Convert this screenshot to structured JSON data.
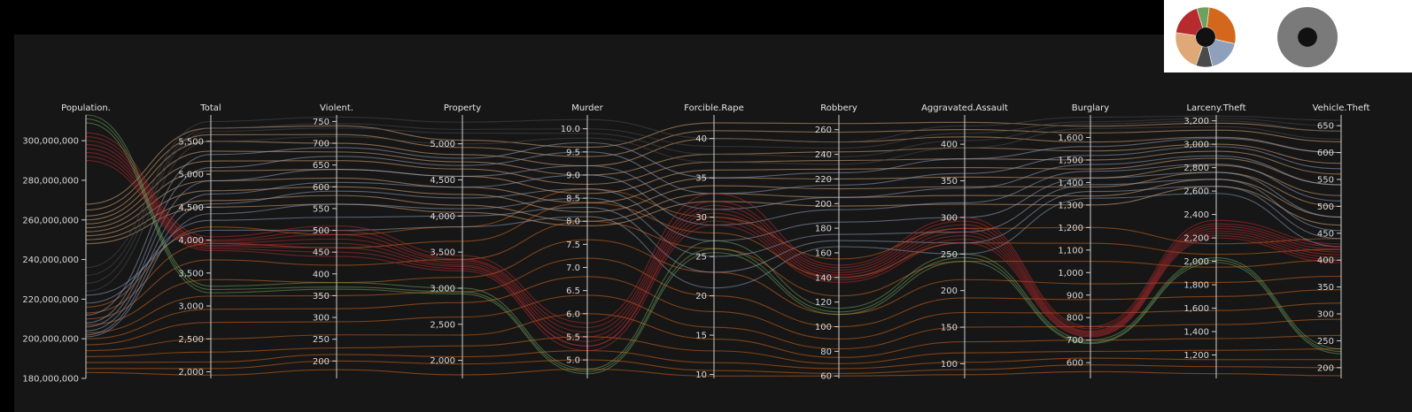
{
  "chart_data": {
    "type": "parallel-coordinates",
    "title": "",
    "axes": [
      {
        "name": "Population.",
        "min": 180000000,
        "max": 313000000,
        "ticks": [
          180000000,
          200000000,
          220000000,
          240000000,
          260000000,
          280000000,
          300000000
        ],
        "tick_labels": [
          "180,000,000",
          "200,000,000",
          "220,000,000",
          "240,000,000",
          "260,000,000",
          "280,000,000",
          "300,000,000"
        ]
      },
      {
        "name": "Total",
        "min": 1900,
        "max": 5900,
        "ticks": [
          2000,
          2500,
          3000,
          3500,
          4000,
          4500,
          5000,
          5500
        ],
        "tick_labels": [
          "2,000",
          "2,500",
          "3,000",
          "3,500",
          "4,000",
          "4,500",
          "5,000",
          "5,500"
        ]
      },
      {
        "name": "Violent.",
        "min": 160,
        "max": 765,
        "ticks": [
          200,
          250,
          300,
          350,
          400,
          450,
          500,
          550,
          600,
          650,
          700,
          750
        ],
        "tick_labels": [
          "200",
          "250",
          "300",
          "350",
          "400",
          "450",
          "500",
          "550",
          "600",
          "650",
          "700",
          "750"
        ]
      },
      {
        "name": "Property",
        "min": 1750,
        "max": 5400,
        "ticks": [
          2000,
          2500,
          3000,
          3500,
          4000,
          4500,
          5000
        ],
        "tick_labels": [
          "2,000",
          "2,500",
          "3,000",
          "3,500",
          "4,000",
          "4,500",
          "5,000"
        ]
      },
      {
        "name": "Murder",
        "min": 4.6,
        "max": 10.3,
        "ticks": [
          5.0,
          5.5,
          6.0,
          6.5,
          7.0,
          7.5,
          8.0,
          8.5,
          9.0,
          9.5,
          10.0
        ],
        "tick_labels": [
          "5.0",
          "5.5",
          "6.0",
          "6.5",
          "7.0",
          "7.5",
          "8.0",
          "8.5",
          "9.0",
          "9.5",
          "10.0"
        ]
      },
      {
        "name": "Forcible.Rape",
        "min": 9.5,
        "max": 43,
        "ticks": [
          10,
          15,
          20,
          25,
          30,
          35,
          40
        ],
        "tick_labels": [
          "10",
          "15",
          "20",
          "25",
          "30",
          "35",
          "40"
        ]
      },
      {
        "name": "Robbery",
        "min": 58,
        "max": 272,
        "ticks": [
          60,
          80,
          100,
          120,
          140,
          160,
          180,
          200,
          220,
          240,
          260
        ],
        "tick_labels": [
          "60",
          "80",
          "100",
          "120",
          "140",
          "160",
          "180",
          "200",
          "220",
          "240",
          "260"
        ]
      },
      {
        "name": "Aggravated.Assault",
        "min": 80,
        "max": 440,
        "ticks": [
          100,
          150,
          200,
          250,
          300,
          350,
          400
        ],
        "tick_labels": [
          "100",
          "150",
          "200",
          "250",
          "300",
          "350",
          "400"
        ]
      },
      {
        "name": "Burglary",
        "min": 530,
        "max": 1700,
        "ticks": [
          600,
          700,
          800,
          900,
          1000,
          1100,
          1200,
          1300,
          1400,
          1500,
          1600
        ],
        "tick_labels": [
          "600",
          "700",
          "800",
          "900",
          "1,000",
          "1,100",
          "1,200",
          "1,300",
          "1,400",
          "1,500",
          "1,600"
        ]
      },
      {
        "name": "Larceny.Theft",
        "min": 1000,
        "max": 3250,
        "ticks": [
          1200,
          1400,
          1600,
          1800,
          2000,
          2200,
          2400,
          2600,
          2800,
          3000,
          3200
        ],
        "tick_labels": [
          "1,200",
          "1,400",
          "1,600",
          "1,800",
          "2,000",
          "2,200",
          "2,400",
          "2,600",
          "2,800",
          "3,000",
          "3,200"
        ]
      },
      {
        "name": "Vehicle.Theft",
        "min": 180,
        "max": 670,
        "ticks": [
          200,
          250,
          300,
          350,
          400,
          450,
          500,
          550,
          600,
          650
        ],
        "tick_labels": [
          "200",
          "250",
          "300",
          "350",
          "400",
          "450",
          "500",
          "550",
          "600",
          "650"
        ]
      }
    ],
    "groups": [
      {
        "color": "#d3681c"
      },
      {
        "color": "#dfa877"
      },
      {
        "color": "#4a4a4a"
      },
      {
        "color": "#8fa0bc"
      },
      {
        "color": "#b72b2f"
      },
      {
        "color": "#6fa05e"
      }
    ],
    "lines": [
      {
        "g": 0,
        "v": [
          183000000,
          1950,
          180,
          1800,
          4.8,
          9.8,
          60,
          85,
          560,
          1040,
          185
        ]
      },
      {
        "g": 0,
        "v": [
          185000000,
          2050,
          200,
          1950,
          5.0,
          10.5,
          62,
          92,
          590,
          1100,
          200
        ]
      },
      {
        "g": 0,
        "v": [
          188000000,
          2150,
          215,
          2050,
          5.2,
          11.5,
          66,
          102,
          620,
          1160,
          215
        ]
      },
      {
        "g": 0,
        "v": [
          191000000,
          2300,
          230,
          2200,
          5.5,
          13,
          70,
          115,
          650,
          1240,
          235
        ]
      },
      {
        "g": 0,
        "v": [
          194000000,
          2500,
          260,
          2350,
          6.0,
          14.5,
          75,
          130,
          700,
          1340,
          260
        ]
      },
      {
        "g": 0,
        "v": [
          197000000,
          2750,
          290,
          2600,
          6.4,
          16,
          82,
          150,
          760,
          1460,
          290
        ]
      },
      {
        "g": 0,
        "v": [
          200000000,
          2950,
          320,
          2800,
          6.8,
          18,
          90,
          170,
          820,
          1580,
          320
        ]
      },
      {
        "g": 0,
        "v": [
          203000000,
          3150,
          350,
          2950,
          7.2,
          20,
          100,
          190,
          880,
          1700,
          345
        ]
      },
      {
        "g": 0,
        "v": [
          207000000,
          3400,
          380,
          3150,
          7.6,
          23,
          110,
          215,
          950,
          1820,
          370
        ]
      },
      {
        "g": 0,
        "v": [
          210000000,
          3700,
          420,
          3400,
          8.0,
          26,
          125,
          240,
          1050,
          1950,
          400
        ]
      },
      {
        "g": 0,
        "v": [
          213000000,
          3950,
          460,
          3650,
          8.4,
          28,
          140,
          265,
          1130,
          2060,
          420
        ]
      },
      {
        "g": 0,
        "v": [
          216000000,
          4200,
          490,
          3850,
          8.7,
          30,
          155,
          285,
          1200,
          2150,
          440
        ]
      },
      {
        "g": 1,
        "v": [
          268000000,
          5700,
          740,
          5050,
          9.6,
          42,
          265,
          430,
          1650,
          3180,
          640
        ]
      },
      {
        "g": 1,
        "v": [
          265000000,
          5600,
          720,
          4950,
          9.4,
          41,
          258,
          420,
          1620,
          3120,
          620
        ]
      },
      {
        "g": 1,
        "v": [
          262000000,
          5500,
          700,
          4850,
          9.2,
          40,
          250,
          410,
          1580,
          3060,
          600
        ]
      },
      {
        "g": 1,
        "v": [
          260000000,
          5350,
          680,
          4750,
          9.0,
          38,
          242,
          395,
          1540,
          3000,
          580
        ]
      },
      {
        "g": 1,
        "v": [
          258000000,
          5200,
          660,
          4650,
          8.8,
          37,
          235,
          380,
          1500,
          2940,
          560
        ]
      },
      {
        "g": 1,
        "v": [
          256000000,
          5050,
          640,
          4550,
          8.6,
          36,
          228,
          368,
          1460,
          2880,
          540
        ]
      },
      {
        "g": 1,
        "v": [
          254000000,
          4900,
          620,
          4400,
          8.4,
          35,
          220,
          355,
          1420,
          2820,
          520
        ]
      },
      {
        "g": 1,
        "v": [
          252000000,
          4750,
          600,
          4300,
          8.2,
          34,
          212,
          342,
          1380,
          2760,
          500
        ]
      },
      {
        "g": 1,
        "v": [
          250000000,
          4600,
          580,
          4150,
          8.0,
          33,
          205,
          330,
          1340,
          2700,
          480
        ]
      },
      {
        "g": 1,
        "v": [
          248000000,
          4500,
          560,
          4050,
          7.9,
          32,
          198,
          318,
          1300,
          2640,
          465
        ]
      },
      {
        "g": 2,
        "v": [
          236000000,
          5800,
          760,
          5300,
          10.2,
          40,
          250,
          425,
          1690,
          3240,
          660
        ]
      },
      {
        "g": 2,
        "v": [
          232000000,
          5700,
          745,
          5200,
          10.0,
          39,
          245,
          415,
          1670,
          3220,
          650
        ]
      },
      {
        "g": 2,
        "v": [
          228000000,
          5650,
          735,
          5150,
          9.9,
          38,
          238,
          405,
          1660,
          3200,
          640
        ]
      },
      {
        "g": 2,
        "v": [
          224000000,
          5500,
          715,
          5000,
          9.8,
          37,
          232,
          395,
          1640,
          3150,
          625
        ]
      },
      {
        "g": 3,
        "v": [
          212000000,
          5300,
          690,
          4800,
          9.7,
          35,
          225,
          380,
          1560,
          3050,
          600
        ]
      },
      {
        "g": 3,
        "v": [
          208000000,
          5100,
          670,
          4700,
          9.5,
          33,
          215,
          360,
          1520,
          2980,
          570
        ]
      },
      {
        "g": 3,
        "v": [
          206000000,
          4900,
          640,
          4550,
          9.2,
          31,
          205,
          340,
          1480,
          2900,
          540
        ]
      },
      {
        "g": 3,
        "v": [
          204000000,
          4700,
          610,
          4400,
          9.0,
          29,
          195,
          320,
          1450,
          2830,
          510
        ]
      },
      {
        "g": 3,
        "v": [
          202000000,
          4550,
          590,
          4250,
          8.7,
          27,
          185,
          300,
          1420,
          2760,
          480
        ]
      },
      {
        "g": 3,
        "v": [
          201000000,
          4400,
          560,
          4100,
          8.5,
          25,
          175,
          280,
          1390,
          2700,
          455
        ]
      },
      {
        "g": 3,
        "v": [
          218000000,
          4300,
          530,
          4000,
          8.3,
          23,
          170,
          265,
          1360,
          2640,
          440
        ]
      },
      {
        "g": 3,
        "v": [
          222000000,
          4150,
          500,
          3850,
          8.1,
          21,
          165,
          250,
          1330,
          2580,
          425
        ]
      },
      {
        "g": 4,
        "v": [
          304000000,
          4050,
          510,
          3450,
          5.8,
          33,
          150,
          300,
          760,
          2350,
          430
        ]
      },
      {
        "g": 4,
        "v": [
          302000000,
          4000,
          500,
          3400,
          5.7,
          32,
          148,
          295,
          750,
          2320,
          425
        ]
      },
      {
        "g": 4,
        "v": [
          300000000,
          3980,
          490,
          3380,
          5.6,
          31.5,
          146,
          290,
          740,
          2300,
          420
        ]
      },
      {
        "g": 4,
        "v": [
          298000000,
          3950,
          480,
          3350,
          5.5,
          31,
          144,
          285,
          735,
          2280,
          415
        ]
      },
      {
        "g": 4,
        "v": [
          296000000,
          3920,
          470,
          3320,
          5.4,
          30.5,
          142,
          280,
          730,
          2260,
          410
        ]
      },
      {
        "g": 4,
        "v": [
          294000000,
          3900,
          460,
          3300,
          5.3,
          30,
          140,
          275,
          725,
          2240,
          405
        ]
      },
      {
        "g": 4,
        "v": [
          292000000,
          3870,
          450,
          3270,
          5.3,
          29.5,
          138,
          270,
          720,
          2220,
          400
        ]
      },
      {
        "g": 4,
        "v": [
          290000000,
          3840,
          440,
          3240,
          5.2,
          29,
          136,
          265,
          715,
          2200,
          395
        ]
      },
      {
        "g": 5,
        "v": [
          313000000,
          3300,
          380,
          3000,
          4.8,
          27,
          115,
          250,
          700,
          2030,
          235
        ]
      },
      {
        "g": 5,
        "v": [
          311000000,
          3250,
          370,
          2950,
          4.75,
          26,
          112,
          245,
          690,
          2010,
          230
        ]
      },
      {
        "g": 5,
        "v": [
          309000000,
          3200,
          365,
          2920,
          4.7,
          25.5,
          110,
          240,
          685,
          1990,
          226
        ]
      }
    ]
  }
}
